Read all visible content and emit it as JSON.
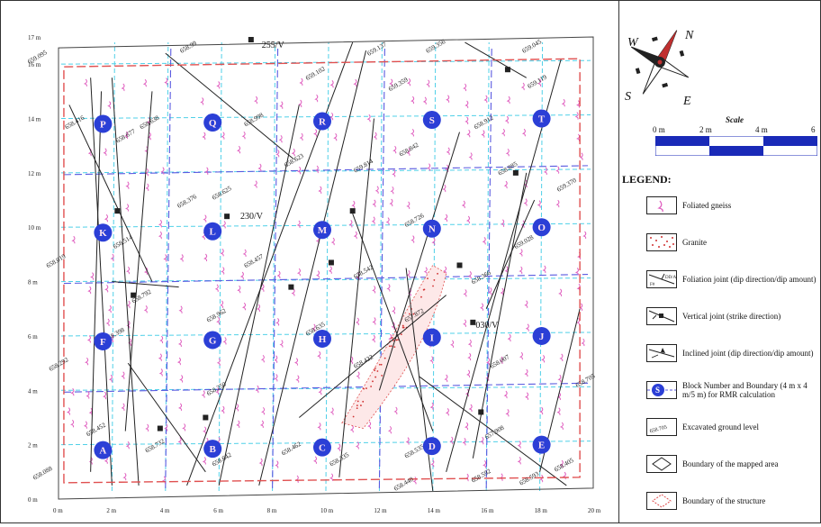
{
  "map": {
    "y_axis_labels": [
      "0 m",
      "2 m",
      "4 m",
      "6 m",
      "8 m",
      "10 m",
      "12 m",
      "14 m",
      "16 m",
      "17 m"
    ],
    "x_axis_labels": [
      "0 m",
      "2 m",
      "4 m",
      "6 m",
      "8 m",
      "10 m",
      "12 m",
      "14 m",
      "16 m",
      "18 m",
      "20 m"
    ],
    "blocks": [
      {
        "id": "A"
      },
      {
        "id": "B"
      },
      {
        "id": "C"
      },
      {
        "id": "D"
      },
      {
        "id": "E"
      },
      {
        "id": "F"
      },
      {
        "id": "G"
      },
      {
        "id": "H"
      },
      {
        "id": "I"
      },
      {
        "id": "J"
      },
      {
        "id": "K"
      },
      {
        "id": "L"
      },
      {
        "id": "M"
      },
      {
        "id": "N"
      },
      {
        "id": "O"
      },
      {
        "id": "P"
      },
      {
        "id": "Q"
      },
      {
        "id": "R"
      },
      {
        "id": "S"
      },
      {
        "id": "T"
      }
    ],
    "vertical_joint_labels": [
      "255/V",
      "230/V",
      "030/V"
    ],
    "elevations": [
      "658.99",
      "659.095",
      "659.137",
      "659.356",
      "659.045",
      "658.416",
      "658.638",
      "658.998",
      "659.102",
      "659.359",
      "658.677",
      "658.912",
      "659.119",
      "658.623",
      "659.814",
      "658.842",
      "658.885",
      "659.370",
      "658.625",
      "658.376",
      "658.514",
      "658.726",
      "659.028",
      "658.019",
      "658.457",
      "658.542",
      "658.366",
      "658.792",
      "658.962",
      "658.635",
      "657.872",
      "658.398",
      "658.292",
      "658.422",
      "658.250",
      "658.007",
      "658.705",
      "658.732",
      "658.535",
      "657.908",
      "658.593",
      "658.642",
      "658.462",
      "658.335",
      "658.405",
      "658.088",
      "658.452",
      "658.440",
      "658.592"
    ]
  },
  "compass": {
    "n": "N",
    "e": "E",
    "s": "S",
    "w": "W"
  },
  "scale": {
    "title": "Scale",
    "ticks": [
      "0 m",
      "2 m",
      "4 m",
      "6 m"
    ]
  },
  "legend": {
    "title": "LEGEND:",
    "items": [
      {
        "label": "Foliated gneiss"
      },
      {
        "label": "Granite"
      },
      {
        "label": "Foliation joint (dip direction/dip amount)"
      },
      {
        "label": "Vertical joint (strike direction)"
      },
      {
        "label": "Inclined joint (dip direction/dip amount)"
      },
      {
        "label": "Block Number and Boundary (4 m x 4 m/5 m) for RMR calculation"
      },
      {
        "label": "Excavated ground level"
      },
      {
        "label": "Boundary of the mapped area"
      },
      {
        "label": "Boundary of the structure"
      }
    ]
  },
  "colors": {
    "block": "#2b3fd6",
    "grid_dashed": "#5a5ae0",
    "grid_cyan": "#4fd0e8",
    "structure": "#e05050",
    "gneiss": "#e060c0",
    "joint": "#222222"
  }
}
